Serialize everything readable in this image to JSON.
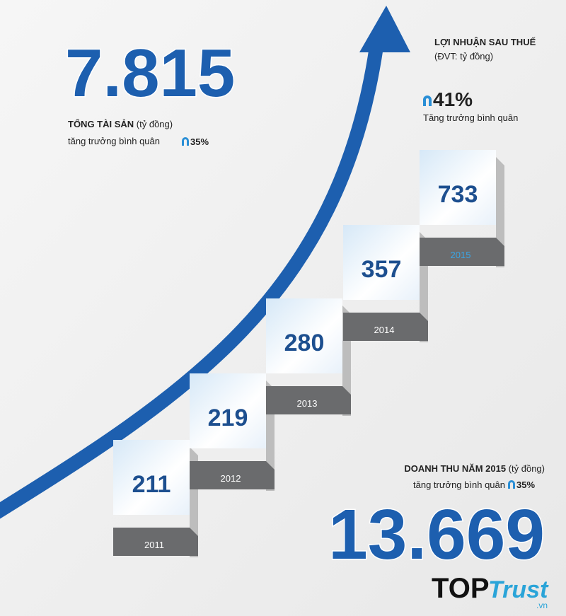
{
  "total_assets": {
    "value": "7.815",
    "label": "TỔNG TÀI SẢN",
    "unit": "(tỷ đồng)",
    "growth_label": "tăng trưởng bình quân",
    "growth": "35%"
  },
  "profit": {
    "title": "LỢI NHUẬN SAU THUẾ",
    "unit": "(ĐVT: tỷ đồng)",
    "growth": "41%",
    "growth_label": "Tăng trưởng bình quân",
    "steps": [
      {
        "year": "2011",
        "value": "211"
      },
      {
        "year": "2012",
        "value": "219"
      },
      {
        "year": "2013",
        "value": "280"
      },
      {
        "year": "2014",
        "value": "357"
      },
      {
        "year": "2015",
        "value": "733"
      }
    ]
  },
  "revenue": {
    "label": "DOANH THU NĂM 2015",
    "unit": "(tỷ đồng)",
    "growth_label": "tăng trưởng bình quân",
    "growth": "35%",
    "value": "13.669"
  },
  "logo": {
    "top": "TOP",
    "trust": "Trust",
    "domain": ".vn"
  }
}
